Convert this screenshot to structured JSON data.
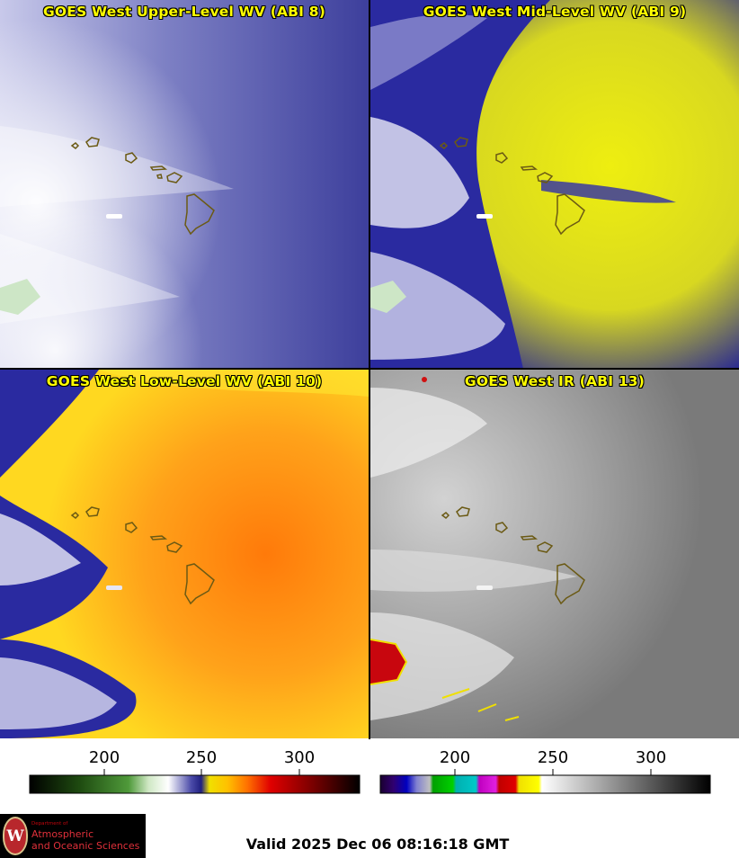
{
  "panels": [
    {
      "title": "GOES West Upper-Level WV (ABI 8)"
    },
    {
      "title": "GOES West Mid-Level WV (ABI 9)"
    },
    {
      "title": "GOES West Low-Level WV (ABI 10)"
    },
    {
      "title": "GOES West IR (ABI 13)"
    }
  ],
  "colorbars": [
    {
      "ticks": [
        "200",
        "250",
        "300"
      ]
    },
    {
      "ticks": [
        "200",
        "250",
        "300"
      ]
    }
  ],
  "logo": {
    "line1": "Department of",
    "line2": "Atmospheric",
    "line3": "and Oceanic Sciences",
    "seal_letter": "W"
  },
  "valid_time": "Valid 2025 Dec 06 08:16:18 GMT"
}
